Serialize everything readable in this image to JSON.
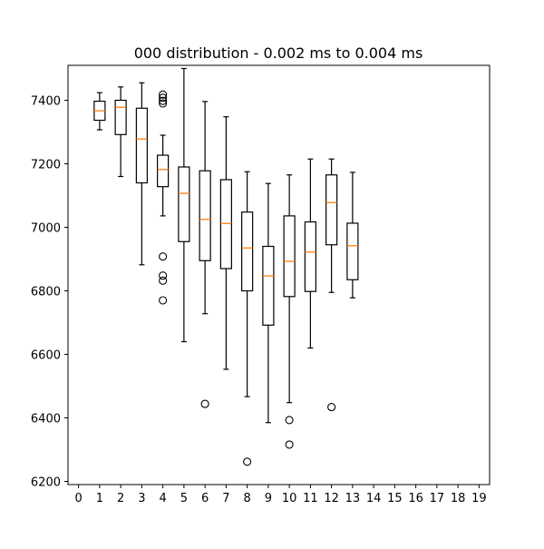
{
  "chart_data": {
    "type": "box",
    "title": "000 distribution - 0.002 ms to 0.004 ms",
    "xlabel": "",
    "ylabel": "",
    "xlim": [
      -0.5,
      19.5
    ],
    "ylim": [
      6190,
      7510
    ],
    "xticks": [
      "0",
      "1",
      "2",
      "3",
      "4",
      "5",
      "6",
      "7",
      "8",
      "9",
      "10",
      "11",
      "12",
      "13",
      "14",
      "15",
      "16",
      "17",
      "18",
      "19"
    ],
    "yticks": [
      6200,
      6400,
      6600,
      6800,
      7000,
      7200,
      7400
    ],
    "grid": false,
    "colors": {
      "box": "#000000",
      "median": "#ff7f0e",
      "outlier": "#000000"
    },
    "boxes": [
      {
        "x": 1,
        "whislo": 7307,
        "q1": 7337,
        "med": 7367,
        "q3": 7397,
        "whishi": 7424,
        "fliers": []
      },
      {
        "x": 2,
        "whislo": 7160,
        "q1": 7292,
        "med": 7378,
        "q3": 7400,
        "whishi": 7442,
        "fliers": []
      },
      {
        "x": 3,
        "whislo": 6882,
        "q1": 7140,
        "med": 7278,
        "q3": 7375,
        "whishi": 7455,
        "fliers": []
      },
      {
        "x": 4,
        "whislo": 7036,
        "q1": 7128,
        "med": 7182,
        "q3": 7227,
        "whishi": 7290,
        "fliers": [
          6770,
          6832,
          6848,
          6908,
          7390,
          7398,
          7408,
          7418
        ]
      },
      {
        "x": 5,
        "whislo": 6640,
        "q1": 6955,
        "med": 7107,
        "q3": 7190,
        "whishi": 7500,
        "fliers": []
      },
      {
        "x": 6,
        "whislo": 6728,
        "q1": 6895,
        "med": 7025,
        "q3": 7178,
        "whishi": 7396,
        "fliers": [
          6444
        ]
      },
      {
        "x": 7,
        "whislo": 6553,
        "q1": 6870,
        "med": 7012,
        "q3": 7150,
        "whishi": 7348,
        "fliers": []
      },
      {
        "x": 8,
        "whislo": 6467,
        "q1": 6800,
        "med": 6935,
        "q3": 7048,
        "whishi": 7175,
        "fliers": [
          6262
        ]
      },
      {
        "x": 9,
        "whislo": 6385,
        "q1": 6692,
        "med": 6847,
        "q3": 6940,
        "whishi": 7138,
        "fliers": []
      },
      {
        "x": 10,
        "whislo": 6448,
        "q1": 6782,
        "med": 6893,
        "q3": 7036,
        "whishi": 7165,
        "fliers": [
          6316,
          6393
        ]
      },
      {
        "x": 11,
        "whislo": 6620,
        "q1": 6798,
        "med": 6922,
        "q3": 7017,
        "whishi": 7215,
        "fliers": []
      },
      {
        "x": 12,
        "whislo": 6795,
        "q1": 6945,
        "med": 7078,
        "q3": 7165,
        "whishi": 7215,
        "fliers": [
          6434
        ]
      },
      {
        "x": 13,
        "whislo": 6778,
        "q1": 6835,
        "med": 6942,
        "q3": 7013,
        "whishi": 7173,
        "fliers": []
      }
    ]
  }
}
